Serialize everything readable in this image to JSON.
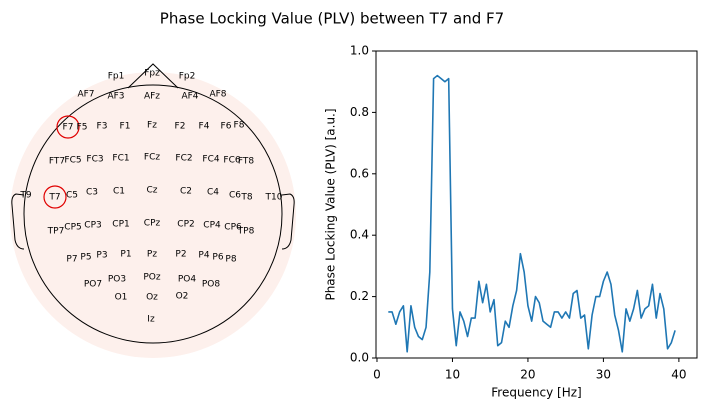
{
  "title": "Phase Locking Value (PLV) between T7 and F7",
  "chart_data": [
    {
      "type": "topomap",
      "labels": [
        "Fp1",
        "Fpz",
        "Fp2",
        "AF7",
        "AF3",
        "AFz",
        "AF4",
        "AF8",
        "F7",
        "F5",
        "F3",
        "F1",
        "Fz",
        "F2",
        "F4",
        "F6",
        "F8",
        "FT7",
        "FC5",
        "FC3",
        "FC1",
        "FCz",
        "FC2",
        "FC4",
        "FC6",
        "FT8",
        "T9",
        "T7",
        "C5",
        "C3",
        "C1",
        "Cz",
        "C2",
        "C4",
        "C6",
        "T8",
        "T10",
        "TP7",
        "CP5",
        "CP3",
        "CP1",
        "CPz",
        "CP2",
        "CP4",
        "CP6",
        "TP8",
        "P7",
        "P5",
        "P3",
        "P1",
        "Pz",
        "P2",
        "P4",
        "P6",
        "P8",
        "PO7",
        "PO3",
        "POz",
        "PO4",
        "PO8",
        "O1",
        "Oz",
        "O2",
        "Iz"
      ]
    },
    {
      "type": "line",
      "xlabel": "Frequency [Hz]",
      "ylabel": "Phase Locking Value (PLV) [a.u.]",
      "color": "#1f77b4",
      "x": [
        1.5,
        2,
        2.5,
        3,
        3.5,
        4,
        4.5,
        5,
        5.5,
        6,
        6.5,
        7,
        7.5,
        8,
        8.5,
        9,
        9.5,
        10,
        10.5,
        11,
        11.5,
        12,
        12.5,
        13,
        13.5,
        14,
        14.5,
        15,
        15.5,
        16,
        16.5,
        17,
        17.5,
        18,
        18.5,
        19,
        19.5,
        20,
        20.5,
        21,
        21.5,
        22,
        22.5,
        23,
        23.5,
        24,
        24.5,
        25,
        25.5,
        26,
        26.5,
        27,
        27.5,
        28,
        28.5,
        29,
        29.5,
        30,
        30.5,
        31,
        31.5,
        32,
        32.5,
        33,
        33.5,
        34,
        34.5,
        35,
        35.5,
        36,
        36.5,
        37,
        37.5,
        38,
        38.5,
        39,
        39.5
      ],
      "values": [
        0.15,
        0.15,
        0.11,
        0.15,
        0.17,
        0.02,
        0.17,
        0.1,
        0.07,
        0.06,
        0.1,
        0.28,
        0.91,
        0.92,
        0.91,
        0.9,
        0.91,
        0.16,
        0.04,
        0.15,
        0.12,
        0.07,
        0.13,
        0.13,
        0.25,
        0.18,
        0.24,
        0.15,
        0.19,
        0.04,
        0.05,
        0.12,
        0.1,
        0.17,
        0.22,
        0.34,
        0.28,
        0.17,
        0.12,
        0.2,
        0.18,
        0.12,
        0.11,
        0.1,
        0.15,
        0.15,
        0.13,
        0.15,
        0.13,
        0.21,
        0.22,
        0.13,
        0.14,
        0.03,
        0.14,
        0.2,
        0.2,
        0.25,
        0.28,
        0.24,
        0.14,
        0.09,
        0.02,
        0.16,
        0.12,
        0.16,
        0.22,
        0.13,
        0.16,
        0.17,
        0.24,
        0.13,
        0.21,
        0.16,
        0.03,
        0.05,
        0.09
      ],
      "xlim": [
        -0.13,
        42.4
      ],
      "ylim": [
        0,
        1
      ],
      "xticks": [
        0,
        10,
        20,
        30,
        40
      ],
      "yticks": [
        {
          "value": 0,
          "label": "0.0"
        },
        0.2,
        0.4,
        0.6,
        0.8,
        {
          "value": 1,
          "label": "1.0"
        }
      ]
    }
  ]
}
